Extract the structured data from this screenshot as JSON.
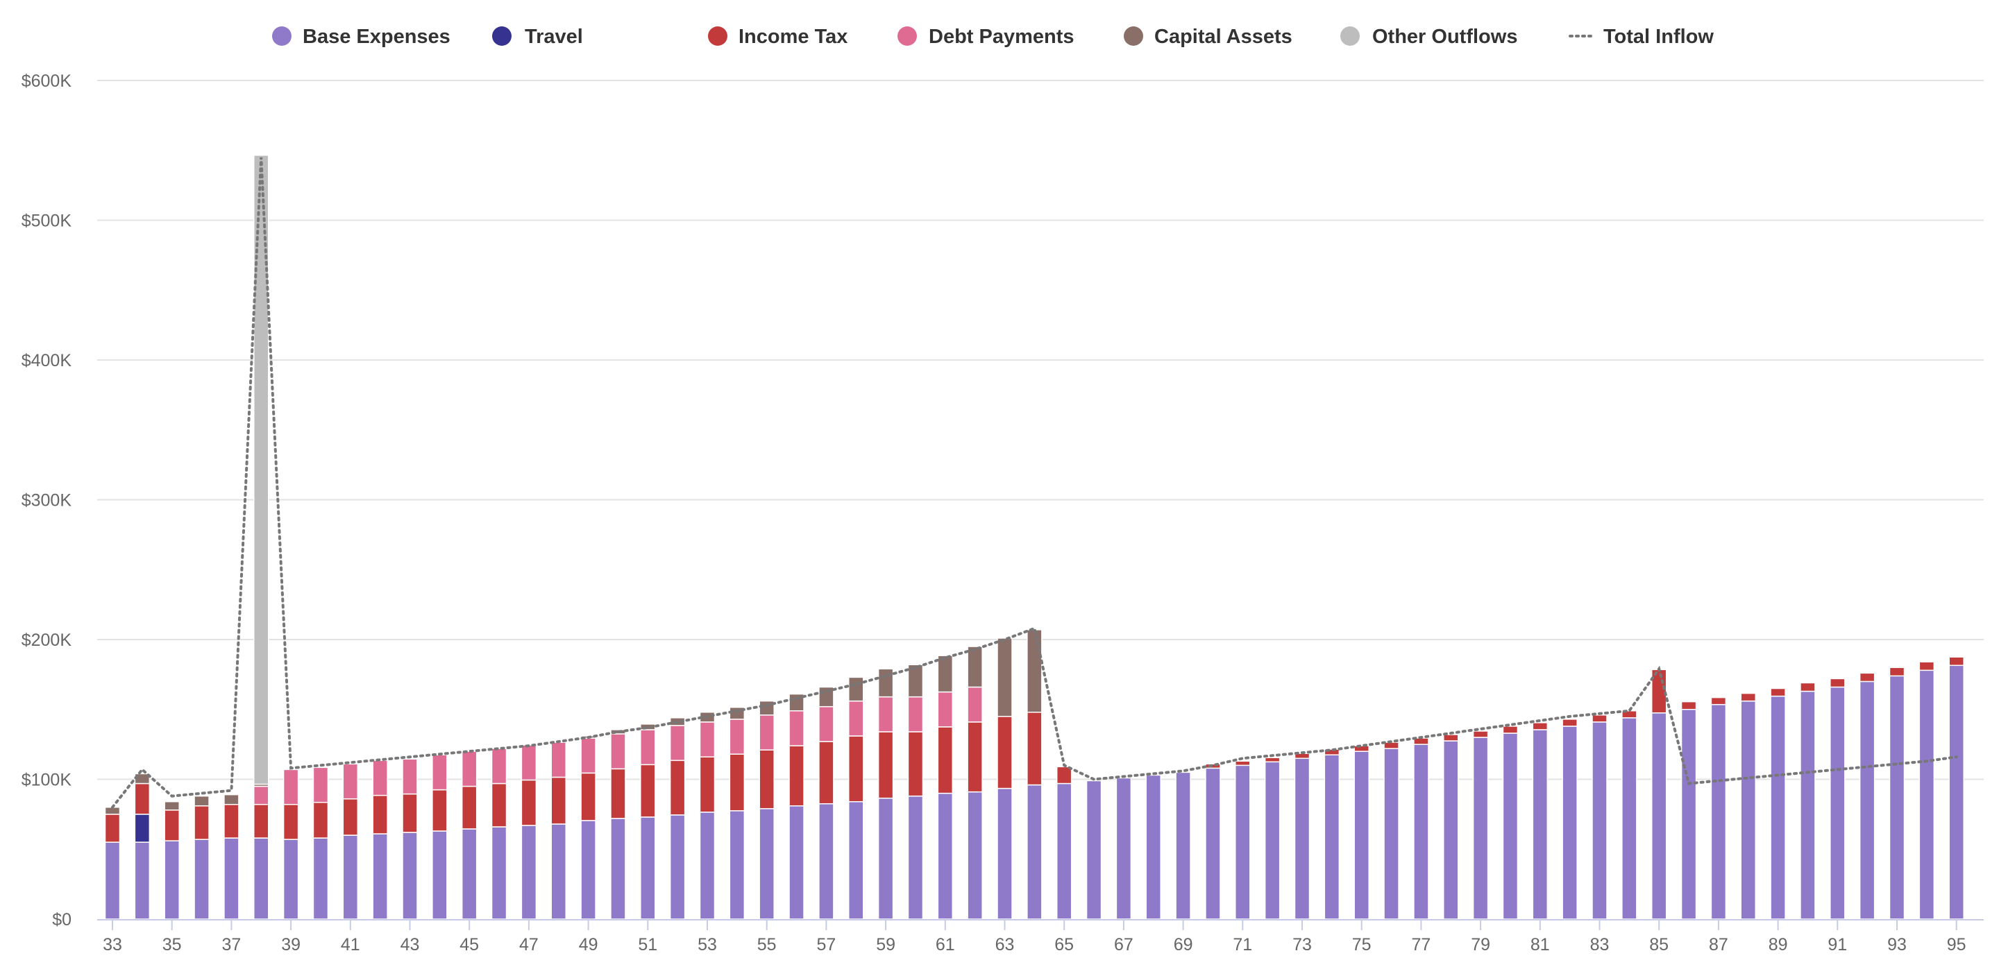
{
  "chart_data": {
    "type": "bar",
    "stacked": true,
    "legend": [
      {
        "name": "Base Expenses",
        "color": "#8f79c9",
        "marker": "circle"
      },
      {
        "name": "Travel",
        "color": "#35338f",
        "marker": "circle"
      },
      {
        "name": "Income Tax",
        "color": "#c23a3a",
        "marker": "circle"
      },
      {
        "name": "Debt Payments",
        "color": "#df6b93",
        "marker": "circle"
      },
      {
        "name": "Capital Assets",
        "color": "#8a6f68",
        "marker": "circle"
      },
      {
        "name": "Other Outflows",
        "color": "#bdbdbd",
        "marker": "circle"
      },
      {
        "name": "Total Inflow",
        "color": "#777777",
        "marker": "dotted-line"
      }
    ],
    "legend_position": "top-center",
    "yaxis": {
      "min": 0,
      "max": 600000,
      "ticks": [
        0,
        100000,
        200000,
        300000,
        400000,
        500000,
        600000
      ],
      "tick_labels": [
        "$0",
        "$100K",
        "$200K",
        "$300K",
        "$400K",
        "$500K",
        "$600K"
      ]
    },
    "xaxis": {
      "min": 33,
      "max": 95,
      "tick_labels": [
        "33",
        "35",
        "37",
        "39",
        "41",
        "43",
        "45",
        "47",
        "49",
        "51",
        "53",
        "55",
        "57",
        "59",
        "61",
        "63",
        "65",
        "67",
        "69",
        "71",
        "73",
        "75",
        "77",
        "79",
        "81",
        "83",
        "85",
        "87",
        "89",
        "91",
        "93",
        "95"
      ]
    },
    "grid": true,
    "x": [
      33,
      34,
      35,
      36,
      37,
      38,
      39,
      40,
      41,
      42,
      43,
      44,
      45,
      46,
      47,
      48,
      49,
      50,
      51,
      52,
      53,
      54,
      55,
      56,
      57,
      58,
      59,
      60,
      61,
      62,
      63,
      64,
      65,
      66,
      67,
      68,
      69,
      70,
      71,
      72,
      73,
      74,
      75,
      76,
      77,
      78,
      79,
      80,
      81,
      82,
      83,
      84,
      85,
      86,
      87,
      88,
      89,
      90,
      91,
      92,
      93,
      94,
      95
    ],
    "series": [
      {
        "name": "Base Expenses",
        "values": [
          55000,
          55000,
          56000,
          57000,
          58000,
          58000,
          57000,
          58000,
          60000,
          61000,
          62000,
          63000,
          64500,
          66000,
          67000,
          68000,
          70500,
          72000,
          73000,
          74500,
          76500,
          77500,
          79000,
          81000,
          82500,
          84000,
          86500,
          88000,
          90000,
          91000,
          93500,
          96000,
          97000,
          99000,
          101000,
          103000,
          105000,
          108000,
          110000,
          112500,
          115000,
          117500,
          120000,
          122000,
          125000,
          127500,
          130000,
          133000,
          135500,
          138000,
          141000,
          144000,
          147500,
          150000,
          153500,
          156000,
          159500,
          163000,
          166000,
          170000,
          174000,
          178000,
          181500
        ]
      },
      {
        "name": "Travel",
        "values": [
          0,
          20000,
          0,
          0,
          0,
          0,
          0,
          0,
          0,
          0,
          0,
          0,
          0,
          0,
          0,
          0,
          0,
          0,
          0,
          0,
          0,
          0,
          0,
          0,
          0,
          0,
          0,
          0,
          0,
          0,
          0,
          0,
          0,
          0,
          0,
          0,
          0,
          0,
          0,
          0,
          0,
          0,
          0,
          0,
          0,
          0,
          0,
          0,
          0,
          0,
          0,
          0,
          0,
          0,
          0,
          0,
          0,
          0,
          0,
          0,
          0,
          0,
          0
        ]
      },
      {
        "name": "Income Tax",
        "values": [
          20000,
          22000,
          22000,
          24000,
          24000,
          24000,
          25000,
          25500,
          26000,
          27500,
          27500,
          29500,
          30500,
          31000,
          32500,
          33500,
          34000,
          35500,
          37500,
          39000,
          39500,
          40500,
          42000,
          43000,
          44500,
          47000,
          47500,
          46000,
          47500,
          50000,
          51500,
          52000,
          12000,
          0,
          0,
          0,
          0,
          3000,
          3000,
          3000,
          3500,
          4000,
          4000,
          4500,
          4500,
          4500,
          4500,
          5000,
          5000,
          5000,
          5000,
          5000,
          31000,
          5500,
          5000,
          5500,
          5500,
          6000,
          6000,
          6000,
          6000,
          6000,
          6000
        ]
      },
      {
        "name": "Debt Payments",
        "values": [
          0,
          0,
          0,
          0,
          0,
          13000,
          25000,
          25000,
          25000,
          25000,
          25000,
          25000,
          25000,
          25000,
          25000,
          25000,
          25000,
          25000,
          25000,
          25000,
          25000,
          25000,
          25000,
          25000,
          25000,
          25000,
          25000,
          25000,
          25000,
          25000,
          0,
          0,
          0,
          0,
          0,
          0,
          0,
          0,
          0,
          0,
          0,
          0,
          0,
          0,
          0,
          0,
          0,
          0,
          0,
          0,
          0,
          0,
          0,
          0,
          0,
          0,
          0,
          0,
          0,
          0,
          0,
          0,
          0
        ]
      },
      {
        "name": "Capital Assets",
        "values": [
          5000,
          7000,
          6000,
          7000,
          7000,
          1500,
          0,
          0,
          0,
          0,
          0,
          0,
          0,
          0,
          0,
          0,
          1500,
          3000,
          4000,
          5500,
          7000,
          8500,
          10000,
          12000,
          14000,
          17000,
          20000,
          23000,
          26000,
          29000,
          56000,
          59000,
          0,
          0,
          0,
          0,
          0,
          0,
          0,
          0,
          0,
          0,
          0,
          0,
          0,
          0,
          0,
          0,
          0,
          0,
          0,
          0,
          0,
          0,
          0,
          0,
          0,
          0,
          0,
          0,
          0,
          0,
          0
        ]
      },
      {
        "name": "Other Outflows",
        "values": [
          0,
          0,
          0,
          0,
          0,
          450000,
          0,
          0,
          0,
          0,
          0,
          0,
          0,
          0,
          0,
          0,
          0,
          0,
          0,
          0,
          0,
          0,
          0,
          0,
          0,
          0,
          0,
          0,
          0,
          0,
          0,
          0,
          0,
          0,
          0,
          0,
          0,
          0,
          0,
          0,
          0,
          0,
          0,
          0,
          0,
          0,
          0,
          0,
          0,
          0,
          0,
          0,
          0,
          0,
          0,
          0,
          0,
          0,
          0,
          0,
          0,
          0,
          0
        ]
      }
    ],
    "line_series": {
      "name": "Total Inflow",
      "style": "dotted",
      "values": [
        80000,
        107000,
        88000,
        90000,
        92000,
        545000,
        108000,
        110000,
        112000,
        114000,
        116000,
        118000,
        120000,
        122000,
        124000,
        127000,
        130000,
        134000,
        137000,
        141000,
        145000,
        149000,
        153000,
        158000,
        163000,
        168000,
        174000,
        180000,
        187000,
        193000,
        200000,
        208000,
        110000,
        100000,
        102000,
        104000,
        106000,
        110000,
        115000,
        117000,
        119000,
        121000,
        124000,
        127000,
        130000,
        133000,
        136000,
        139000,
        142000,
        145000,
        147000,
        149000,
        179000,
        97000,
        99000,
        101000,
        103000,
        105000,
        107000,
        109000,
        111000,
        113000,
        116000
      ]
    }
  }
}
